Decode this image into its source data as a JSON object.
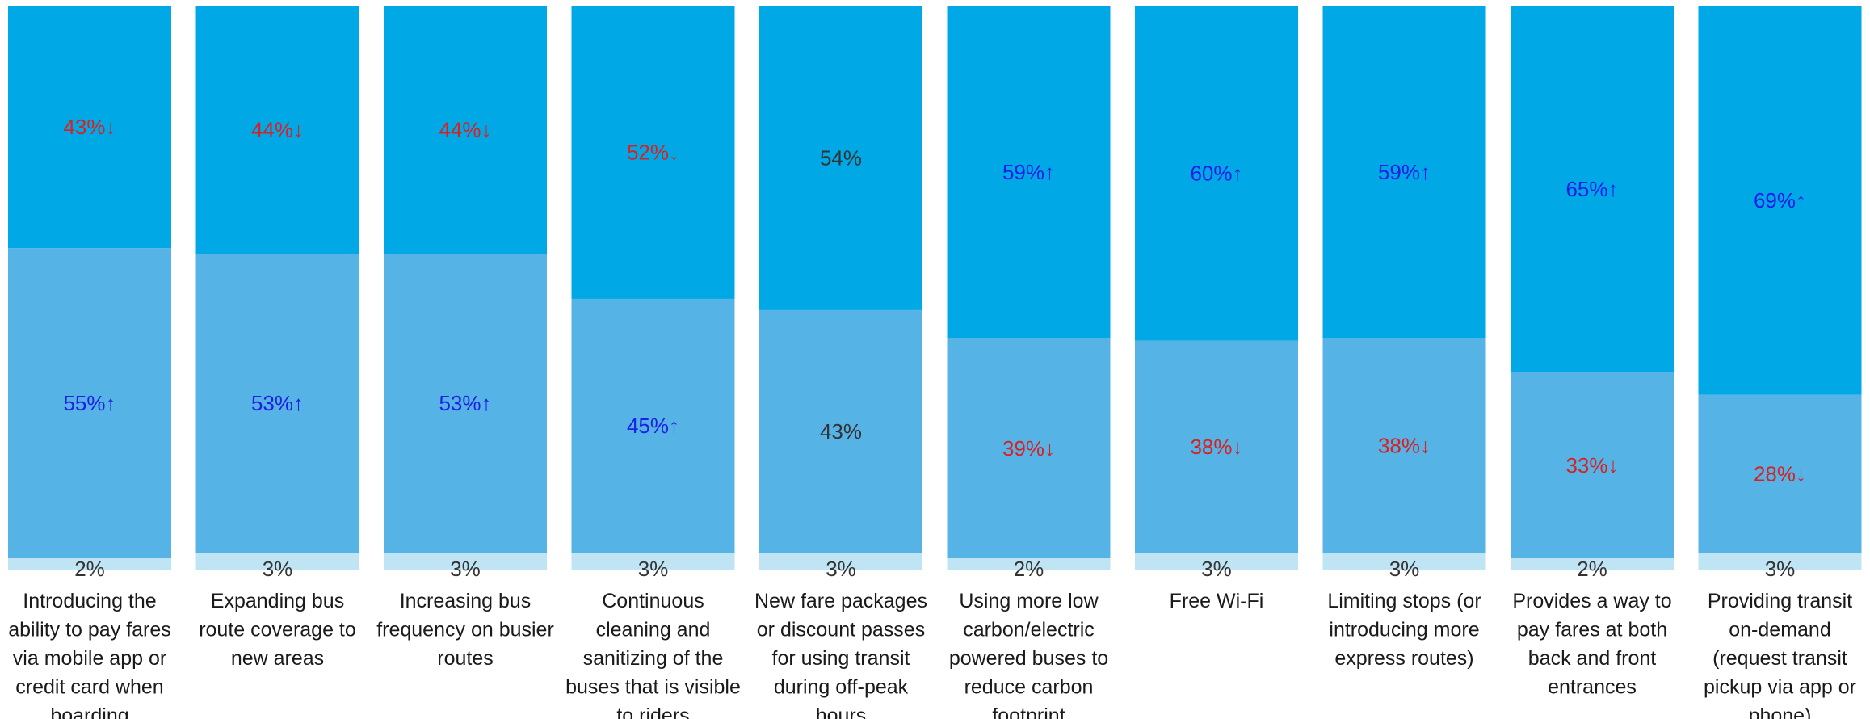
{
  "chart_data": {
    "type": "bar",
    "stacked": true,
    "percent_stacked": true,
    "colors": {
      "top": "#00A9E6",
      "middle": "#55B3E6",
      "bottom": "#BFE5F5",
      "up": "#1F1FE6",
      "down": "#D62222",
      "neutral": "#333333"
    },
    "categories": [
      [
        "Introducing the",
        "ability to pay fares",
        "via mobile app or",
        "credit card when",
        "boarding"
      ],
      [
        "Expanding bus",
        "route coverage to",
        "new areas"
      ],
      [
        "Increasing bus",
        "frequency on busier",
        "routes"
      ],
      [
        "Continuous",
        "cleaning and",
        "sanitizing of the",
        "buses that is visible",
        "to riders"
      ],
      [
        "New fare packages",
        "or discount passes",
        "for using transit",
        "during off-peak",
        "hours"
      ],
      [
        "Using more low",
        "carbon/electric",
        "powered buses to",
        "reduce carbon",
        "footprint"
      ],
      [
        "Free Wi-Fi"
      ],
      [
        "Limiting stops (or",
        "introducing more",
        "express routes)"
      ],
      [
        "Provides a way to",
        "pay fares at both",
        "back and front",
        "entrances"
      ],
      [
        "Providing transit",
        "on-demand",
        "(request transit",
        "pickup via app or",
        "phone)"
      ]
    ],
    "series": [
      {
        "values": [
          2,
          3,
          3,
          3,
          3,
          2,
          3,
          3,
          2,
          3
        ],
        "trend": [
          "none",
          "none",
          "none",
          "none",
          "none",
          "none",
          "none",
          "none",
          "none",
          "none"
        ],
        "labels": [
          "2%",
          "3%",
          "3%",
          "3%",
          "3%",
          "2%",
          "3%",
          "3%",
          "2%",
          "3%"
        ]
      },
      {
        "values": [
          55,
          53,
          53,
          45,
          43,
          39,
          38,
          38,
          33,
          28
        ],
        "trend": [
          "up",
          "up",
          "up",
          "up",
          "none",
          "down",
          "down",
          "down",
          "down",
          "down"
        ],
        "labels": [
          "55%↑",
          "53%↑",
          "53%↑",
          "45%↑",
          "43%",
          "39%↓",
          "38%↓",
          "38%↓",
          "33%↓",
          "28%↓"
        ]
      },
      {
        "values": [
          43,
          44,
          44,
          52,
          54,
          59,
          60,
          59,
          65,
          69
        ],
        "trend": [
          "down",
          "down",
          "down",
          "down",
          "none",
          "up",
          "up",
          "up",
          "up",
          "up"
        ],
        "labels": [
          "43%↓",
          "44%↓",
          "44%↓",
          "52%↓",
          "54%",
          "59%↑",
          "60%↑",
          "59%↑",
          "65%↑",
          "69%↑"
        ]
      }
    ]
  }
}
